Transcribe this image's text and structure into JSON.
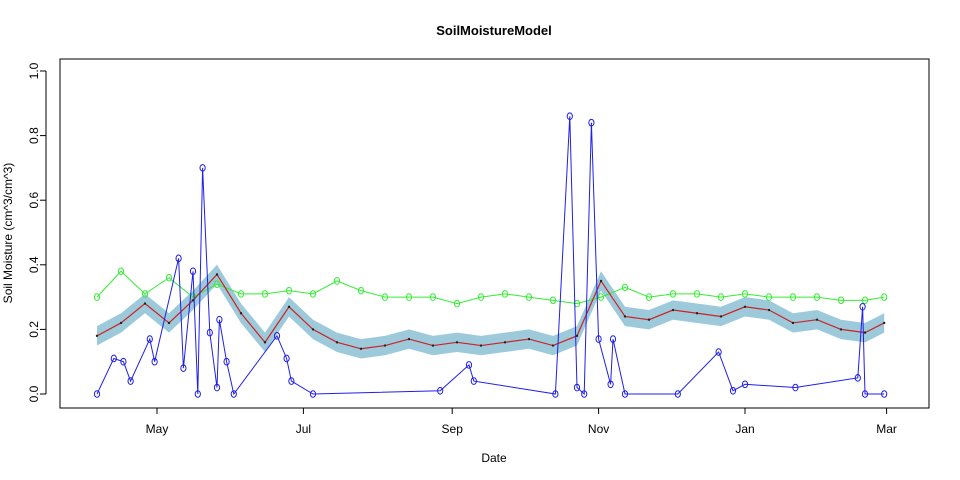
{
  "chart_data": {
    "type": "line",
    "title": "SoilMoistureModel",
    "xlabel": "Date",
    "ylabel": "Soil Moisture (cm^3/cm^3)",
    "ylim": [
      0,
      1.0
    ],
    "y_ticks": [
      "0.0",
      "0.2",
      "0.4",
      "0.6",
      "0.8",
      "1.0"
    ],
    "x_ticks": [
      "May",
      "Jul",
      "Sep",
      "Nov",
      "Jan",
      "Mar"
    ],
    "grid": false,
    "colors": {
      "green_series": "#33ee33",
      "blue_series": "#1f1fe8",
      "red_series": "#cc2222",
      "band": "#9ccadb",
      "black_points": "#222222"
    },
    "series": [
      {
        "style": "green line with open circles",
        "x": [
          "04-06",
          "04-16",
          "04-26",
          "05-06",
          "05-16",
          "05-26",
          "06-05",
          "06-15",
          "06-25",
          "07-05",
          "07-15",
          "07-25",
          "08-04",
          "08-14",
          "08-24",
          "09-03",
          "09-13",
          "09-23",
          "10-03",
          "10-13",
          "10-23",
          "11-02",
          "11-12",
          "11-22",
          "12-02",
          "12-12",
          "12-22",
          "01-01",
          "01-11",
          "01-21",
          "01-31",
          "02-10",
          "02-20",
          "02-28"
        ],
        "y": [
          0.3,
          0.38,
          0.31,
          0.36,
          0.3,
          0.34,
          0.31,
          0.31,
          0.32,
          0.31,
          0.35,
          0.32,
          0.3,
          0.3,
          0.3,
          0.28,
          0.3,
          0.31,
          0.3,
          0.29,
          0.28,
          0.3,
          0.33,
          0.3,
          0.31,
          0.31,
          0.3,
          0.31,
          0.3,
          0.3,
          0.3,
          0.29,
          0.29,
          0.3
        ]
      },
      {
        "style": "blue line with open circles",
        "x": [
          "04-06",
          "04-13",
          "04-17",
          "04-20",
          "04-28",
          "04-30",
          "05-10",
          "05-12",
          "05-16",
          "05-18",
          "05-20",
          "05-23",
          "05-26",
          "05-27",
          "05-30",
          "06-02",
          "06-20",
          "06-24",
          "06-26",
          "07-05",
          "08-27",
          "09-08",
          "09-10",
          "10-14",
          "10-20",
          "10-23",
          "10-26",
          "10-29",
          "11-01",
          "11-06",
          "11-07",
          "11-12",
          "12-04",
          "12-21",
          "12-27",
          "01-01",
          "01-22",
          "02-17",
          "02-19",
          "02-20",
          "02-28"
        ],
        "y": [
          0.0,
          0.11,
          0.1,
          0.04,
          0.17,
          0.1,
          0.42,
          0.08,
          0.38,
          0.0,
          0.7,
          0.19,
          0.02,
          0.23,
          0.1,
          0.0,
          0.18,
          0.11,
          0.04,
          0.0,
          0.01,
          0.09,
          0.04,
          0.0,
          0.86,
          0.02,
          0.0,
          0.84,
          0.17,
          0.03,
          0.17,
          0.0,
          0.0,
          0.13,
          0.01,
          0.03,
          0.02,
          0.05,
          0.27,
          0.0,
          0.0
        ]
      },
      {
        "style": "red line with blue confidence band",
        "x": [
          "04-06",
          "04-16",
          "04-26",
          "05-06",
          "05-16",
          "05-26",
          "06-05",
          "06-15",
          "06-25",
          "07-05",
          "07-15",
          "07-25",
          "08-04",
          "08-14",
          "08-24",
          "09-03",
          "09-13",
          "09-23",
          "10-03",
          "10-13",
          "10-23",
          "11-02",
          "11-12",
          "11-22",
          "12-02",
          "12-12",
          "12-22",
          "01-01",
          "01-11",
          "01-21",
          "01-31",
          "02-10",
          "02-20",
          "02-28"
        ],
        "y": [
          0.18,
          0.22,
          0.28,
          0.22,
          0.29,
          0.37,
          0.25,
          0.16,
          0.27,
          0.2,
          0.16,
          0.14,
          0.15,
          0.17,
          0.15,
          0.16,
          0.15,
          0.16,
          0.17,
          0.15,
          0.18,
          0.35,
          0.24,
          0.23,
          0.26,
          0.25,
          0.24,
          0.27,
          0.26,
          0.22,
          0.23,
          0.2,
          0.19,
          0.22
        ],
        "band_halfwidth": 0.03
      }
    ]
  }
}
